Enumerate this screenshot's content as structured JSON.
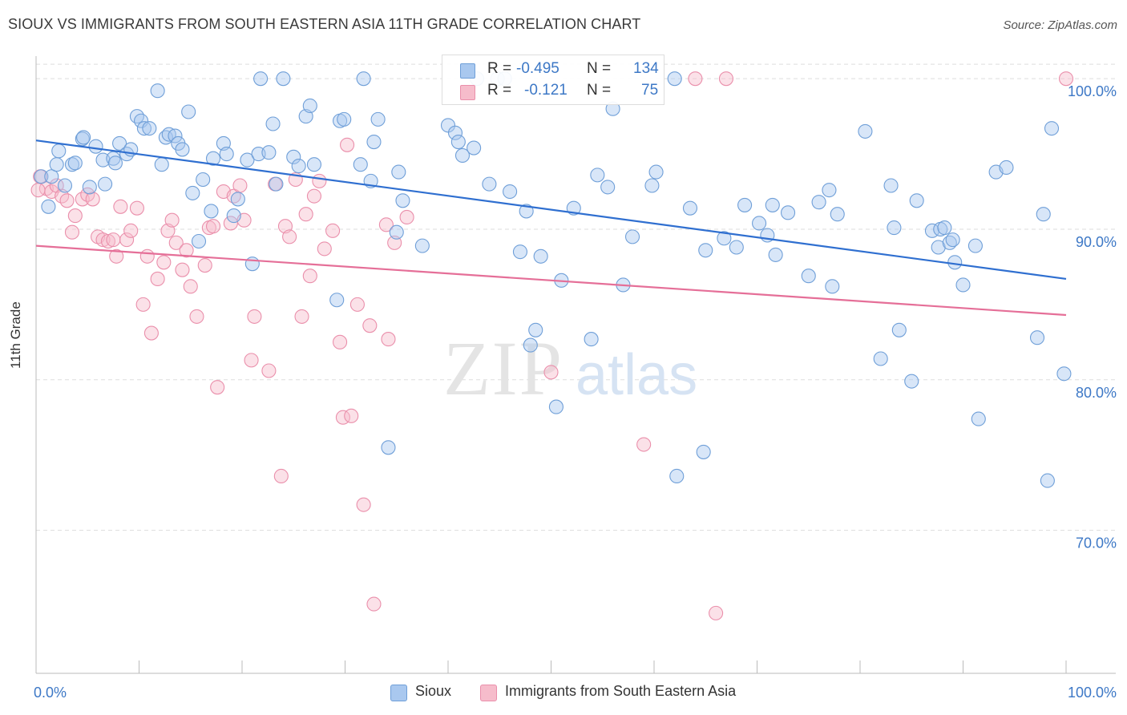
{
  "header": {
    "title": "SIOUX VS IMMIGRANTS FROM SOUTH EASTERN ASIA 11TH GRADE CORRELATION CHART",
    "source": "Source: ZipAtlas.com"
  },
  "legend": {
    "rows": [
      {
        "r_label": "R =",
        "r_value": "-0.495",
        "n_label": "N =",
        "n_value": "134"
      },
      {
        "r_label": "R =",
        "r_value": "-0.121",
        "n_label": "N =",
        "n_value": "75"
      }
    ],
    "bottom": [
      "Sioux",
      "Immigrants from South Eastern Asia"
    ]
  },
  "watermark": {
    "zip": "ZIP",
    "atlas": "atlas"
  },
  "colors": {
    "sioux_fill": "#a9c8ef",
    "sioux_stroke": "#6f9fd8",
    "sioux_line": "#2f6fd0",
    "imm_fill": "#f6bccb",
    "imm_stroke": "#ea8fab",
    "imm_line": "#e56f98",
    "tick_label": "#3d78c6",
    "grid": "#dddddd"
  },
  "chart_data": {
    "type": "scatter",
    "title": "SIOUX VS IMMIGRANTS FROM SOUTH EASTERN ASIA 11TH GRADE CORRELATION CHART",
    "xlabel": "",
    "ylabel": "11th Grade",
    "xlim": [
      0,
      100
    ],
    "ylim": [
      60.5,
      101.5
    ],
    "x_tick_labels": [
      "0.0%",
      "100.0%"
    ],
    "y_ticks": [
      70,
      80,
      90,
      100
    ],
    "y_tick_labels": [
      "70.0%",
      "80.0%",
      "90.0%",
      "100.0%"
    ],
    "grid": true,
    "legend_position": "top-center",
    "series": [
      {
        "name": "Sioux",
        "r": -0.495,
        "n": 134,
        "trend": {
          "x": [
            0,
            100
          ],
          "y": [
            95.9,
            86.7
          ]
        },
        "points": [
          [
            0.5,
            93.5
          ],
          [
            1.2,
            91.5
          ],
          [
            1.5,
            93.5
          ],
          [
            2.0,
            94.3
          ],
          [
            2.2,
            95.2
          ],
          [
            2.8,
            92.9
          ],
          [
            3.5,
            94.3
          ],
          [
            3.8,
            94.4
          ],
          [
            4.5,
            96.0
          ],
          [
            4.6,
            96.1
          ],
          [
            5.2,
            92.8
          ],
          [
            5.8,
            95.5
          ],
          [
            6.5,
            94.6
          ],
          [
            6.7,
            93.0
          ],
          [
            7.5,
            94.7
          ],
          [
            7.7,
            94.4
          ],
          [
            8.1,
            95.7
          ],
          [
            8.8,
            95.0
          ],
          [
            9.2,
            95.3
          ],
          [
            9.8,
            97.5
          ],
          [
            10.2,
            97.2
          ],
          [
            10.5,
            96.7
          ],
          [
            11.0,
            96.7
          ],
          [
            11.8,
            99.2
          ],
          [
            12.2,
            94.3
          ],
          [
            12.6,
            96.1
          ],
          [
            12.9,
            96.3
          ],
          [
            13.5,
            96.2
          ],
          [
            13.8,
            95.7
          ],
          [
            14.2,
            95.3
          ],
          [
            14.8,
            97.8
          ],
          [
            15.2,
            92.4
          ],
          [
            15.8,
            89.2
          ],
          [
            16.2,
            93.3
          ],
          [
            17.0,
            91.2
          ],
          [
            17.2,
            94.7
          ],
          [
            18.2,
            95.7
          ],
          [
            18.5,
            95.0
          ],
          [
            19.2,
            90.9
          ],
          [
            19.6,
            92.0
          ],
          [
            20.5,
            94.6
          ],
          [
            21.0,
            87.7
          ],
          [
            21.6,
            95.0
          ],
          [
            21.8,
            100.0
          ],
          [
            22.6,
            95.1
          ],
          [
            23.0,
            97.0
          ],
          [
            23.3,
            93.0
          ],
          [
            24.0,
            100.0
          ],
          [
            25.0,
            94.8
          ],
          [
            25.5,
            94.2
          ],
          [
            26.2,
            97.5
          ],
          [
            26.6,
            98.2
          ],
          [
            27.0,
            94.3
          ],
          [
            29.2,
            85.3
          ],
          [
            29.5,
            97.2
          ],
          [
            29.9,
            97.3
          ],
          [
            31.5,
            94.3
          ],
          [
            31.8,
            100.0
          ],
          [
            32.5,
            93.2
          ],
          [
            32.8,
            95.8
          ],
          [
            33.2,
            97.3
          ],
          [
            34.2,
            75.5
          ],
          [
            35.0,
            89.8
          ],
          [
            35.2,
            93.8
          ],
          [
            35.6,
            91.9
          ],
          [
            37.5,
            88.9
          ],
          [
            40.0,
            96.9
          ],
          [
            40.7,
            96.4
          ],
          [
            41.0,
            95.8
          ],
          [
            41.4,
            94.9
          ],
          [
            42.5,
            95.4
          ],
          [
            42.8,
            100.0
          ],
          [
            44.0,
            93.0
          ],
          [
            44.8,
            100.0
          ],
          [
            46.0,
            92.5
          ],
          [
            47.0,
            88.5
          ],
          [
            47.6,
            91.2
          ],
          [
            48.0,
            82.3
          ],
          [
            48.5,
            83.3
          ],
          [
            49.0,
            88.2
          ],
          [
            50.5,
            78.2
          ],
          [
            51.0,
            86.6
          ],
          [
            52.2,
            91.4
          ],
          [
            53.9,
            82.7
          ],
          [
            54.5,
            93.6
          ],
          [
            55.5,
            92.8
          ],
          [
            56.0,
            98.0
          ],
          [
            57.0,
            86.3
          ],
          [
            57.9,
            89.5
          ],
          [
            59.8,
            92.9
          ],
          [
            60.2,
            93.8
          ],
          [
            62.0,
            100.0
          ],
          [
            62.2,
            73.6
          ],
          [
            63.5,
            91.4
          ],
          [
            64.8,
            75.2
          ],
          [
            65.0,
            88.6
          ],
          [
            66.8,
            89.4
          ],
          [
            68.0,
            88.8
          ],
          [
            68.8,
            91.6
          ],
          [
            70.2,
            90.4
          ],
          [
            71.0,
            89.6
          ],
          [
            71.5,
            91.6
          ],
          [
            71.8,
            88.3
          ],
          [
            73.0,
            91.1
          ],
          [
            75.0,
            86.9
          ],
          [
            76.0,
            91.8
          ],
          [
            77.0,
            92.6
          ],
          [
            77.3,
            86.2
          ],
          [
            77.8,
            91.0
          ],
          [
            80.5,
            96.5
          ],
          [
            82.0,
            81.4
          ],
          [
            83.0,
            92.9
          ],
          [
            83.3,
            90.1
          ],
          [
            83.8,
            83.3
          ],
          [
            85.0,
            79.9
          ],
          [
            85.5,
            91.9
          ],
          [
            87.0,
            89.9
          ],
          [
            87.6,
            88.8
          ],
          [
            87.8,
            90.0
          ],
          [
            88.2,
            90.1
          ],
          [
            88.7,
            89.1
          ],
          [
            89.0,
            89.3
          ],
          [
            89.2,
            87.8
          ],
          [
            90.0,
            86.3
          ],
          [
            91.2,
            88.9
          ],
          [
            91.5,
            77.4
          ],
          [
            93.2,
            93.8
          ],
          [
            94.2,
            94.1
          ],
          [
            97.2,
            82.8
          ],
          [
            97.8,
            91.0
          ],
          [
            98.2,
            73.3
          ],
          [
            98.6,
            96.7
          ],
          [
            99.8,
            80.4
          ],
          [
            45.5,
            100.0
          ]
        ]
      },
      {
        "name": "Immigrants from South Eastern Asia",
        "r": -0.121,
        "n": 75,
        "trend": {
          "x": [
            0,
            100
          ],
          "y": [
            88.9,
            84.3
          ]
        },
        "points": [
          [
            0.4,
            93.5
          ],
          [
            1.0,
            92.7
          ],
          [
            1.5,
            92.5
          ],
          [
            2.0,
            92.9
          ],
          [
            2.5,
            92.2
          ],
          [
            3.0,
            91.9
          ],
          [
            3.5,
            89.8
          ],
          [
            3.8,
            90.9
          ],
          [
            4.5,
            92.0
          ],
          [
            5.0,
            92.3
          ],
          [
            5.5,
            92.0
          ],
          [
            6.0,
            89.5
          ],
          [
            6.5,
            89.3
          ],
          [
            7.0,
            89.2
          ],
          [
            7.5,
            89.3
          ],
          [
            7.8,
            88.2
          ],
          [
            8.2,
            91.5
          ],
          [
            8.8,
            89.3
          ],
          [
            9.2,
            89.9
          ],
          [
            9.8,
            91.4
          ],
          [
            10.4,
            85.0
          ],
          [
            10.8,
            88.2
          ],
          [
            11.2,
            83.1
          ],
          [
            11.8,
            86.7
          ],
          [
            12.4,
            87.8
          ],
          [
            12.8,
            89.9
          ],
          [
            13.2,
            90.6
          ],
          [
            13.6,
            89.1
          ],
          [
            14.2,
            87.3
          ],
          [
            14.6,
            88.6
          ],
          [
            15.0,
            86.2
          ],
          [
            15.6,
            84.2
          ],
          [
            16.4,
            87.6
          ],
          [
            16.8,
            90.1
          ],
          [
            17.2,
            90.2
          ],
          [
            17.6,
            79.5
          ],
          [
            18.2,
            92.5
          ],
          [
            18.9,
            90.4
          ],
          [
            19.2,
            92.2
          ],
          [
            19.8,
            92.9
          ],
          [
            20.2,
            90.6
          ],
          [
            20.9,
            81.3
          ],
          [
            21.2,
            84.2
          ],
          [
            22.6,
            80.6
          ],
          [
            23.2,
            93.0
          ],
          [
            23.8,
            73.6
          ],
          [
            24.2,
            90.2
          ],
          [
            24.6,
            89.5
          ],
          [
            25.2,
            93.3
          ],
          [
            25.8,
            84.2
          ],
          [
            26.2,
            91.0
          ],
          [
            26.6,
            86.9
          ],
          [
            27.0,
            92.2
          ],
          [
            27.5,
            93.2
          ],
          [
            28.0,
            88.7
          ],
          [
            28.8,
            89.9
          ],
          [
            29.5,
            82.5
          ],
          [
            29.8,
            77.5
          ],
          [
            30.2,
            95.6
          ],
          [
            30.6,
            77.6
          ],
          [
            31.2,
            85.0
          ],
          [
            31.8,
            71.7
          ],
          [
            32.4,
            83.6
          ],
          [
            32.8,
            65.1
          ],
          [
            34.0,
            90.3
          ],
          [
            34.2,
            82.7
          ],
          [
            34.8,
            89.1
          ],
          [
            36.0,
            90.8
          ],
          [
            50.0,
            80.5
          ],
          [
            59.0,
            75.7
          ],
          [
            64.0,
            100.0
          ],
          [
            66.0,
            64.5
          ],
          [
            67.0,
            100.0
          ],
          [
            100.0,
            100.0
          ],
          [
            0.2,
            92.6
          ]
        ]
      }
    ]
  }
}
